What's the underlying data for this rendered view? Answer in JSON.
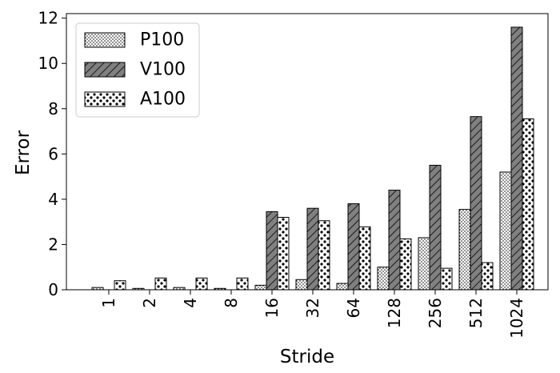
{
  "chart_data": {
    "type": "bar",
    "xlabel": "Stride",
    "ylabel": "Error",
    "ylim": [
      0,
      12.2
    ],
    "yticks": [
      "0",
      "2",
      "4",
      "6",
      "8",
      "10",
      "12"
    ],
    "grid": false,
    "legend_position": "top-left",
    "categories": [
      "1",
      "2",
      "4",
      "8",
      "16",
      "32",
      "64",
      "128",
      "256",
      "512",
      "1024"
    ],
    "series": [
      {
        "name": "P100",
        "pattern": "fine-dots",
        "fill": "#ffffff",
        "values": [
          0.1,
          0.06,
          0.1,
          0.06,
          0.2,
          0.45,
          0.28,
          1.0,
          2.3,
          3.55,
          5.2
        ]
      },
      {
        "name": "V100",
        "pattern": "diagonal-hatch",
        "fill": "#808080",
        "values": [
          0.0,
          0.0,
          0.0,
          0.0,
          3.45,
          3.6,
          3.8,
          4.4,
          5.5,
          7.65,
          11.6
        ]
      },
      {
        "name": "A100",
        "pattern": "large-dots",
        "fill": "#ffffff",
        "values": [
          0.4,
          0.52,
          0.52,
          0.52,
          3.2,
          3.05,
          2.78,
          2.25,
          0.95,
          1.2,
          7.55
        ]
      }
    ]
  }
}
